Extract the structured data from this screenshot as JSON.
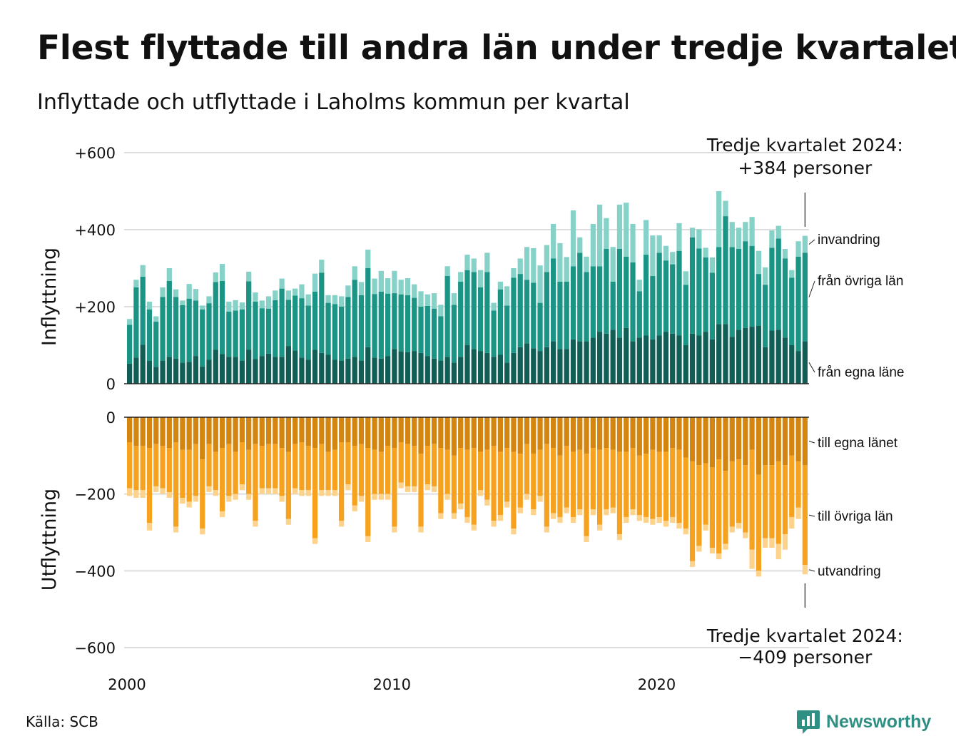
{
  "title": "Flest flyttade till andra län under tredje kvartalet",
  "subtitle": "Inflyttade och utflyttade i Laholms kommun per kvartal",
  "source": "Källa: SCB",
  "brand": "Newsworthy",
  "colors": {
    "in_own": "#115e56",
    "in_other": "#1a9485",
    "in_immig": "#86d2c8",
    "out_own": "#d3850f",
    "out_other": "#f6a21e",
    "out_emig": "#fdd28a",
    "grid": "#dddddd",
    "zero": "#222222",
    "brand": "#2f8f83"
  },
  "chart_data": {
    "type": "bar",
    "stacked": true,
    "x_start": "2000 Q1",
    "x_ticks": [
      "2000",
      "2010",
      "2020"
    ],
    "panels": [
      {
        "name": "inflyttning",
        "ylabel": "Inflyttning",
        "ylim": [
          0,
          600
        ],
        "y_ticks": [
          0,
          200,
          400,
          600
        ],
        "y_tick_labels": [
          "0",
          "+200",
          "+400",
          "+600"
        ],
        "annotation": [
          "Tredje kvartalet 2024:",
          "+384 personer"
        ],
        "series": [
          {
            "name": "från egna läne",
            "values": [
              52,
              68,
              101,
              60,
              44,
              60,
              70,
              65,
              55,
              57,
              72,
              45,
              62,
              88,
              77,
              70,
              70,
              60,
              88,
              64,
              72,
              78,
              70,
              70,
              98,
              86,
              68,
              62,
              88,
              80,
              75,
              62,
              60,
              65,
              70,
              60,
              95,
              68,
              65,
              72,
              90,
              84,
              82,
              85,
              80,
              72,
              65,
              60,
              70,
              55,
              70,
              100,
              90,
              85,
              80,
              70,
              75,
              55,
              80,
              95,
              105,
              92,
              85,
              95,
              110,
              90,
              90,
              115,
              110,
              110,
              120,
              135,
              130,
              140,
              120,
              145,
              110,
              120,
              125,
              115,
              125,
              135,
              130,
              125,
              100,
              130,
              125,
              135,
              115,
              155,
              155,
              122,
              140,
              145,
              148,
              150,
              95,
              138,
              140,
              120,
              100,
              85,
              110
            ]
          },
          {
            "name": "från övriga län",
            "values": [
              101,
              182,
              177,
              133,
              117,
              165,
              197,
              160,
              149,
              164,
              144,
              148,
              147,
              176,
              190,
              117,
              120,
              133,
              178,
              149,
              124,
              117,
              147,
              177,
              120,
              143,
              154,
              141,
              151,
              208,
              135,
              145,
              140,
              160,
              200,
              170,
              205,
              165,
              174,
              162,
              145,
              148,
              148,
              138,
              120,
              130,
              130,
              115,
              210,
              150,
              195,
              195,
              200,
              165,
              210,
              120,
              170,
              148,
              195,
              190,
              165,
              170,
              125,
              195,
              215,
              175,
              175,
              190,
              230,
              180,
              185,
              170,
              220,
              125,
              230,
              185,
              205,
              120,
              210,
              165,
              215,
              185,
              180,
              220,
              157,
              250,
              226,
              193,
              173,
              200,
              280,
              233,
              210,
              225,
              210,
              135,
              162,
              215,
              237,
              205,
              175,
              245,
              230
            ]
          },
          {
            "name": "invandring",
            "values": [
              15,
              20,
              30,
              20,
              14,
              25,
              33,
              20,
              12,
              38,
              30,
              10,
              18,
              25,
              44,
              26,
              27,
              18,
              25,
              24,
              20,
              32,
              25,
              26,
              24,
              18,
              36,
              29,
              47,
              34,
              20,
              23,
              27,
              30,
              35,
              34,
              48,
              40,
              54,
              40,
              58,
              38,
              44,
              35,
              40,
              30,
              40,
              30,
              25,
              30,
              25,
              40,
              35,
              45,
              50,
              20,
              20,
              50,
              25,
              40,
              85,
              90,
              97,
              70,
              90,
              100,
              64,
              145,
              40,
              40,
              110,
              160,
              80,
              90,
              115,
              140,
              100,
              30,
              90,
              105,
              45,
              38,
              32,
              72,
              35,
              25,
              50,
              25,
              40,
              145,
              40,
              65,
              55,
              50,
              75,
              60,
              45,
              45,
              33,
              25,
              20,
              40,
              44
            ]
          }
        ]
      },
      {
        "name": "utflyttning",
        "ylabel": "Utflyttning",
        "ylim": [
          -600,
          0
        ],
        "y_ticks": [
          0,
          -200,
          -400,
          -600
        ],
        "y_tick_labels": [
          "0",
          "−200",
          "−400",
          "−600"
        ],
        "annotation": [
          "Tredje kvartalet 2024:",
          "−409 personer"
        ],
        "series": [
          {
            "name": "till egna länet",
            "values": [
              -65,
              -75,
              -75,
              -80,
              -70,
              -75,
              -80,
              -65,
              -85,
              -85,
              -70,
              -110,
              -70,
              -90,
              -80,
              -70,
              -90,
              -65,
              -85,
              -70,
              -75,
              -70,
              -70,
              -80,
              -90,
              -70,
              -65,
              -75,
              -80,
              -70,
              -90,
              -85,
              -65,
              -65,
              -75,
              -70,
              -80,
              -85,
              -90,
              -75,
              -80,
              -65,
              -70,
              -75,
              -95,
              -75,
              -70,
              -80,
              -85,
              -100,
              -80,
              -85,
              -80,
              -90,
              -85,
              -75,
              -90,
              -80,
              -90,
              -95,
              -70,
              -95,
              -85,
              -70,
              -80,
              -100,
              -75,
              -90,
              -85,
              -95,
              -80,
              -85,
              -80,
              -85,
              -90,
              -90,
              -80,
              -100,
              -95,
              -85,
              -90,
              -90,
              -80,
              -85,
              -105,
              -115,
              -125,
              -120,
              -130,
              -110,
              -140,
              -115,
              -110,
              -125,
              -85,
              -150,
              -125,
              -125,
              -115,
              -125,
              -100,
              -115,
              -125
            ]
          },
          {
            "name": "till övriga län",
            "values": [
              -120,
              -115,
              -115,
              -195,
              -110,
              -110,
              -115,
              -220,
              -125,
              -135,
              -135,
              -180,
              -110,
              -100,
              -165,
              -135,
              -110,
              -110,
              -115,
              -200,
              -110,
              -115,
              -115,
              -125,
              -175,
              -115,
              -125,
              -115,
              -235,
              -120,
              -100,
              -105,
              -205,
              -110,
              -155,
              -135,
              -230,
              -115,
              -110,
              -125,
              -205,
              -105,
              -110,
              -105,
              -190,
              -100,
              -110,
              -170,
              -115,
              -150,
              -145,
              -175,
              -200,
              -100,
              -130,
              -195,
              -165,
              -140,
              -200,
              -140,
              -130,
              -145,
              -120,
              -215,
              -170,
              -160,
              -160,
              -170,
              -155,
              -215,
              -160,
              -195,
              -160,
              -150,
              -215,
              -170,
              -160,
              -155,
              -165,
              -180,
              -170,
              -180,
              -180,
              -190,
              -185,
              -260,
              -210,
              -160,
              -210,
              -245,
              -190,
              -170,
              -165,
              -175,
              -260,
              -250,
              -190,
              -190,
              -215,
              -180,
              -160,
              -120,
              -260
            ]
          },
          {
            "name": "utvandring",
            "values": [
              -20,
              -20,
              -20,
              -20,
              -15,
              -15,
              -15,
              -15,
              -15,
              -15,
              -15,
              -15,
              -15,
              -15,
              -15,
              -15,
              -15,
              -15,
              -15,
              -15,
              -15,
              -15,
              -15,
              -15,
              -15,
              -15,
              -15,
              -15,
              -15,
              -15,
              -15,
              -15,
              -15,
              -15,
              -15,
              -15,
              -15,
              -15,
              -15,
              -15,
              -15,
              -15,
              -15,
              -15,
              -15,
              -15,
              -15,
              -15,
              -15,
              -15,
              -15,
              -15,
              -15,
              -15,
              -15,
              -15,
              -15,
              -15,
              -15,
              -15,
              -15,
              -15,
              -15,
              -15,
              -15,
              -15,
              -15,
              -15,
              -15,
              -15,
              -15,
              -15,
              -15,
              -15,
              -15,
              -15,
              -15,
              -15,
              -15,
              -15,
              -15,
              -15,
              -15,
              -15,
              -15,
              -15,
              -15,
              -15,
              -15,
              -15,
              -15,
              -15,
              -15,
              -15,
              -50,
              -15,
              -25,
              -25,
              -40,
              -40,
              -30,
              -30,
              -24
            ]
          }
        ]
      }
    ],
    "segment_labels_in": [
      "invandring",
      "från övriga län",
      "från egna läne"
    ],
    "segment_labels_out": [
      "till egna länet",
      "till övriga län",
      "utvandring"
    ]
  }
}
